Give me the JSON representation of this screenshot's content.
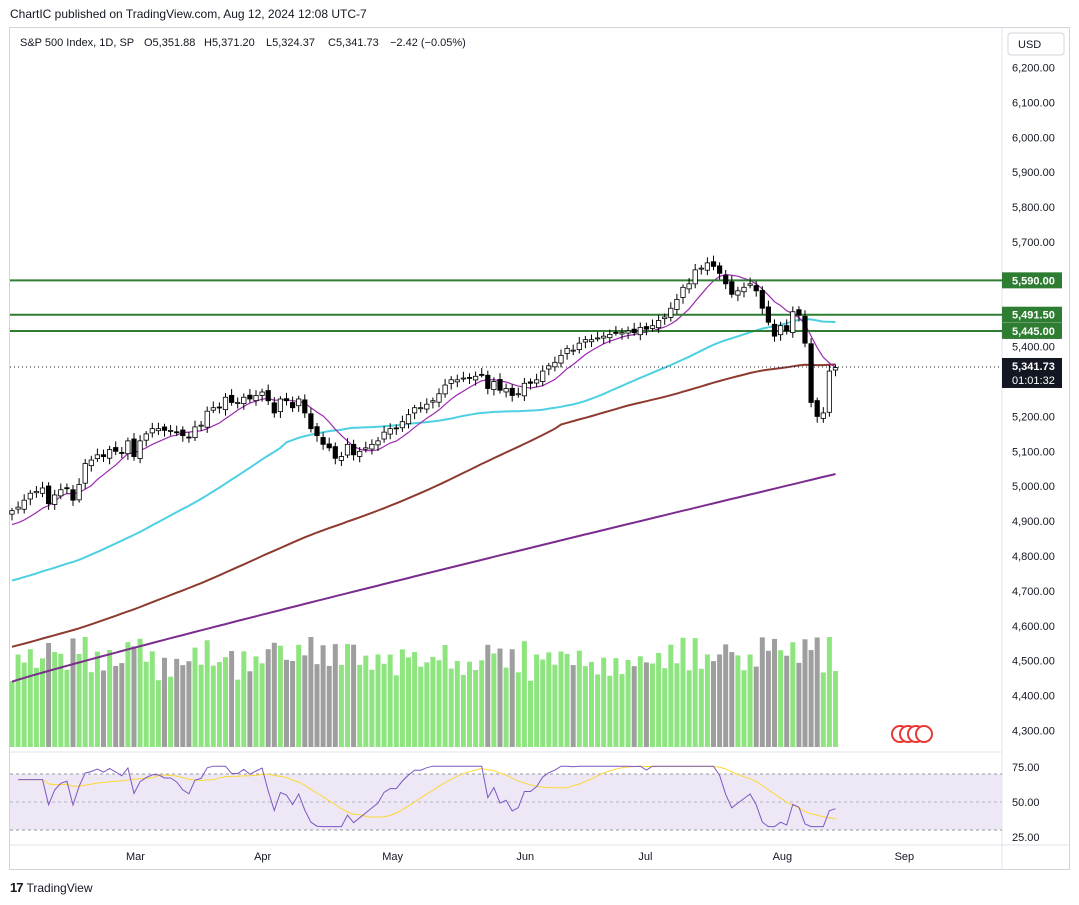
{
  "publisher_line": "ChartIC published on TradingView.com, Aug 12, 2024 12:08 UTC-7",
  "footer": {
    "logo": "17",
    "brand": "TradingView"
  },
  "currency": "USD",
  "colors": {
    "up_candle": "#ffffff",
    "down_candle": "#000000",
    "ema_fast": "#9c27b0",
    "sma_50": "#4dd0e1",
    "sma_100": "#8d3a2f",
    "sma_200": "#7b2d8e",
    "level_line": "#2e7d32",
    "vol_up": "#8ee57f",
    "vol_down": "#9e9e9e",
    "rsi_line": "#7e57c2",
    "rsi_ma": "#fdd835",
    "rsi_band": "#ede7f6",
    "price_tag": "#131722"
  },
  "chart_data": {
    "type": "candlestick",
    "header": {
      "symbol": "S&P 500 Index, 1D, SP",
      "open": "O5,351.88",
      "high": "H5,371.20",
      "low": "L5,324.37",
      "close": "C5,341.73",
      "change": "−2.42 (−0.05%)"
    },
    "price_axis": {
      "ticks": [
        "6,200.00",
        "6,100.00",
        "6,000.00",
        "5,900.00",
        "5,800.00",
        "5,700.00",
        "5,400.00",
        "5,200.00",
        "5,100.00",
        "5,000.00",
        "4,900.00",
        "4,800.00",
        "4,700.00",
        "4,600.00",
        "4,500.00",
        "4,400.00",
        "4,300.00"
      ],
      "tick_values": [
        6200,
        6100,
        6000,
        5900,
        5800,
        5700,
        5400,
        5200,
        5100,
        5000,
        4900,
        4800,
        4700,
        4600,
        4500,
        4400,
        4300
      ],
      "range": [
        4290,
        6230
      ]
    },
    "levels": [
      {
        "value": 5590,
        "label": "5,590.00"
      },
      {
        "value": 5491.5,
        "label": "5,491.50"
      },
      {
        "value": 5445,
        "label": "5,445.00"
      }
    ],
    "last_price": {
      "value": 5341.73,
      "label": "5,341.73",
      "countdown": "01:01:32"
    },
    "time_axis": [
      {
        "label": "Mar",
        "index": 20
      },
      {
        "label": "Apr",
        "index": 41
      },
      {
        "label": "May",
        "index": 62
      },
      {
        "label": "Jun",
        "index": 84
      },
      {
        "label": "Jul",
        "index": 104
      },
      {
        "label": "Aug",
        "index": 126
      },
      {
        "label": "Sep",
        "index": 146
      }
    ],
    "closes": [
      4930,
      4940,
      4960,
      4980,
      4985,
      4995,
      4950,
      4975,
      4990,
      4995,
      4960,
      5005,
      5065,
      5075,
      5090,
      5085,
      5105,
      5100,
      5095,
      5130,
      5085,
      5130,
      5150,
      5165,
      5165,
      5160,
      5160,
      5155,
      5145,
      5140,
      5170,
      5175,
      5215,
      5225,
      5225,
      5255,
      5240,
      5240,
      5255,
      5250,
      5260,
      5270,
      5245,
      5210,
      5250,
      5245,
      5225,
      5250,
      5210,
      5165,
      5145,
      5120,
      5110,
      5080,
      5085,
      5120,
      5090,
      5100,
      5110,
      5120,
      5130,
      5155,
      5165,
      5165,
      5185,
      5205,
      5225,
      5225,
      5235,
      5245,
      5265,
      5290,
      5305,
      5305,
      5310,
      5310,
      5315,
      5320,
      5280,
      5300,
      5275,
      5280,
      5260,
      5265,
      5295,
      5295,
      5305,
      5330,
      5345,
      5355,
      5375,
      5395,
      5390,
      5410,
      5420,
      5420,
      5425,
      5430,
      5435,
      5440,
      5440,
      5445,
      5440,
      5455,
      5450,
      5460,
      5475,
      5485,
      5510,
      5535,
      5570,
      5580,
      5620,
      5625,
      5640,
      5630,
      5610,
      5580,
      5550,
      5560,
      5570,
      5580,
      5560,
      5510,
      5470,
      5430,
      5460,
      5445,
      5500,
      5490,
      5410,
      5240,
      5200,
      5210,
      5330,
      5340
    ]
  }
}
